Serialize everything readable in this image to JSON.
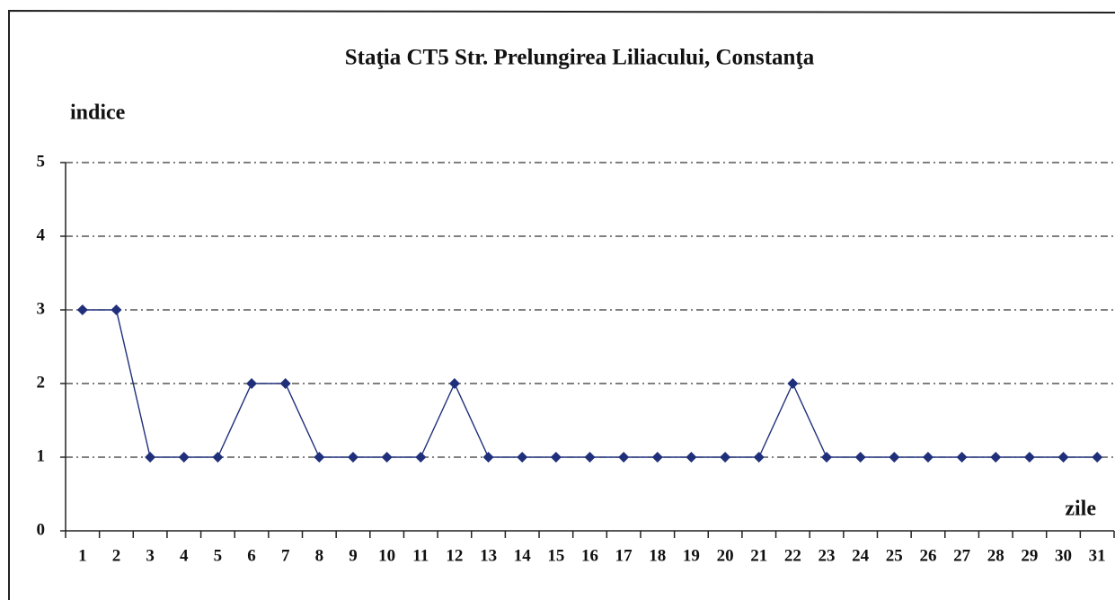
{
  "chart_data": {
    "type": "line",
    "title": "Staţia CT5 Str. Prelungirea Liliacului,  Constanţa",
    "y_label": "indice",
    "x_label": "zile",
    "categories": [
      "1",
      "2",
      "3",
      "4",
      "5",
      "6",
      "7",
      "8",
      "9",
      "10",
      "11",
      "12",
      "13",
      "14",
      "15",
      "16",
      "17",
      "18",
      "19",
      "20",
      "21",
      "22",
      "23",
      "24",
      "25",
      "26",
      "27",
      "28",
      "29",
      "30",
      "31"
    ],
    "values": [
      3,
      3,
      1,
      1,
      1,
      2,
      2,
      1,
      1,
      1,
      1,
      2,
      1,
      1,
      1,
      1,
      1,
      1,
      1,
      1,
      1,
      2,
      1,
      1,
      1,
      1,
      1,
      1,
      1,
      1,
      1
    ],
    "color": "#1f2f7a",
    "ylim": [
      0,
      5
    ],
    "yticks": [
      0,
      1,
      2,
      3,
      4,
      5
    ],
    "grid": true
  }
}
